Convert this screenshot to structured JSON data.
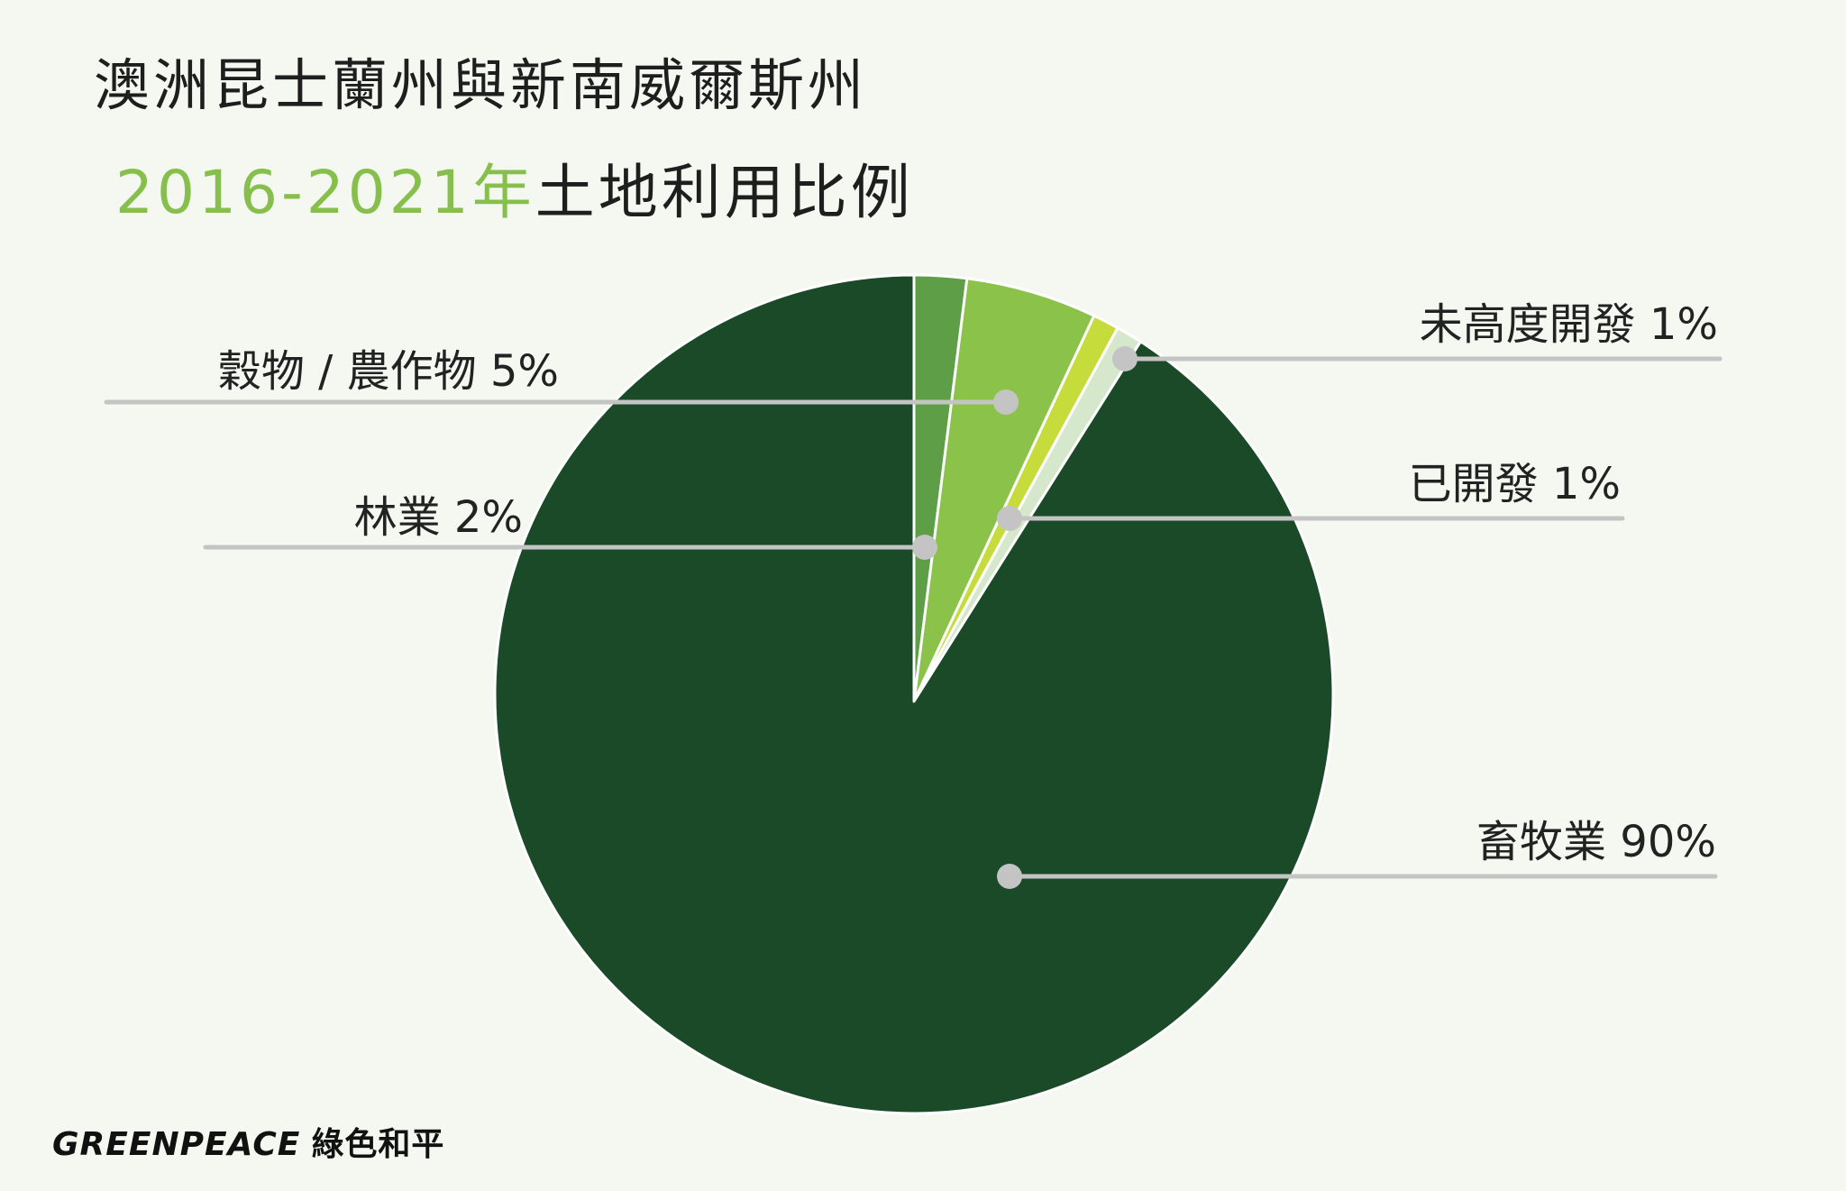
{
  "title": {
    "line1": "澳洲昆士蘭州與新南威爾斯州",
    "year_range": "2016-2021年",
    "line2_rest": "土地利用比例"
  },
  "logo": {
    "brand": "GREENPEACE",
    "chinese": "綠色和平"
  },
  "chart_data": {
    "type": "pie",
    "title": "澳洲昆士蘭州與新南威爾斯州 2016-2021年土地利用比例",
    "slices": [
      {
        "label": "林業 2%",
        "value": 2,
        "color": "#5e9e46"
      },
      {
        "label": "穀物 / 農作物  5%",
        "value": 5,
        "color": "#8bc34a"
      },
      {
        "label": "已開發 1%",
        "value": 1,
        "color": "#c5dc3b"
      },
      {
        "label": "未高度開發 1%",
        "value": 1,
        "color": "#d5e8cc"
      },
      {
        "label": "畜牧業 90%",
        "value": 90,
        "color": "#1a4a27"
      }
    ],
    "start_angle_deg": 0,
    "direction": "clockwise"
  }
}
